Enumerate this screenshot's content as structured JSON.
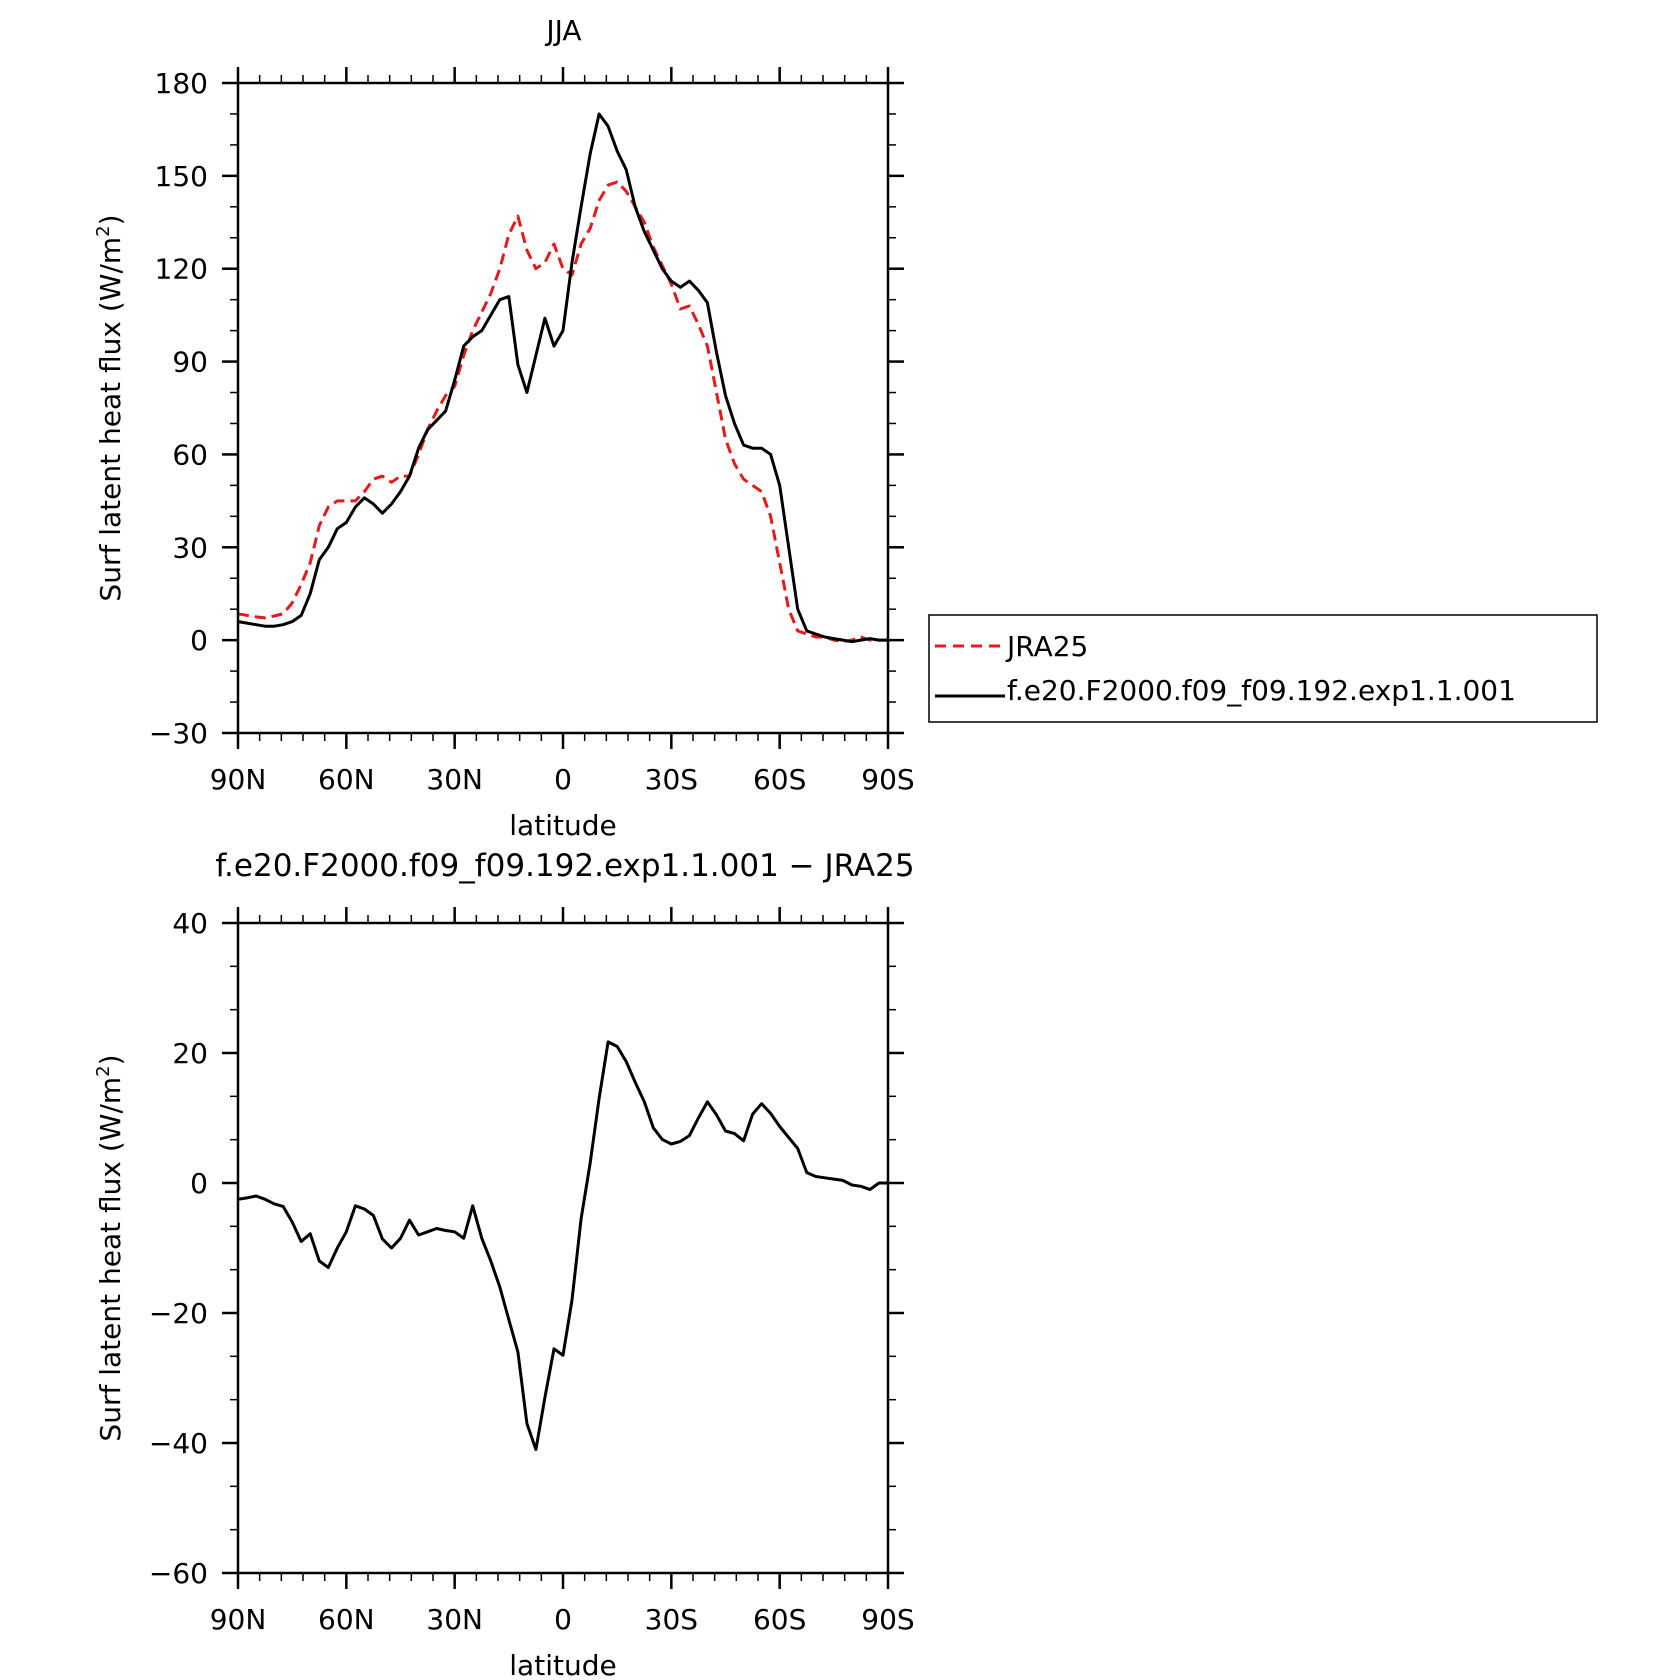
{
  "chart_data": [
    {
      "type": "line",
      "title": "JJA",
      "xlabel": "latitude",
      "ylabel_main": "Surf latent heat flux (W/m",
      "ylabel_sup": "2",
      "ylabel_close": ")",
      "ylim": [
        -30,
        180
      ],
      "yticks": [
        -30,
        0,
        30,
        60,
        90,
        120,
        150,
        180
      ],
      "ytick_labels": [
        "−30",
        "0",
        "30",
        "60",
        "90",
        "120",
        "150",
        "180"
      ],
      "xlim": [
        90,
        -90
      ],
      "xticks": [
        90,
        60,
        30,
        0,
        -30,
        -60,
        -90
      ],
      "xtick_labels": [
        "90N",
        "60N",
        "30N",
        "0",
        "30S",
        "60S",
        "90S"
      ],
      "legend_position": "right",
      "series": [
        {
          "name": "JRA25",
          "color": "#e41a1c",
          "dash": "dashed",
          "x": [
            90,
            87.5,
            85,
            82.5,
            80,
            77.5,
            75,
            72.5,
            70,
            67.5,
            65,
            62.5,
            60,
            57.5,
            55,
            52.5,
            50,
            47.5,
            45,
            42.5,
            40,
            37.5,
            35,
            32.5,
            30,
            27.5,
            25,
            22.5,
            20,
            17.5,
            15,
            12.5,
            10,
            7.5,
            5,
            2.5,
            0,
            -2.5,
            -5,
            -7.5,
            -10,
            -12.5,
            -15,
            -17.5,
            -20,
            -22.5,
            -25,
            -27.5,
            -30,
            -32.5,
            -35,
            -37.5,
            -40,
            -42.5,
            -45,
            -47.5,
            -50,
            -52.5,
            -55,
            -57.5,
            -60,
            -62.5,
            -65,
            -67.5,
            -70,
            -72.5,
            -75,
            -77.5,
            -80,
            -82.5,
            -85,
            -87.5,
            -90
          ],
          "y": [
            8.5,
            8,
            7.5,
            7.2,
            7.8,
            8.5,
            12,
            18,
            25,
            37,
            43,
            45,
            45,
            45,
            48,
            52,
            53,
            51,
            53,
            53,
            60,
            68,
            74,
            79,
            82,
            92,
            100,
            106,
            112,
            120,
            131,
            137,
            126,
            120,
            122,
            128,
            120,
            118,
            128,
            133,
            142,
            147,
            148,
            145,
            140,
            135,
            127,
            121,
            115,
            107,
            108,
            102,
            95,
            80,
            65,
            57,
            52,
            50,
            48,
            40,
            25,
            10,
            3,
            2,
            1,
            1,
            0,
            -0.5,
            0,
            1,
            0,
            0,
            0
          ]
        },
        {
          "name": "f.e20.F2000.f09_f09.192.exp1.1.001",
          "color": "#000000",
          "dash": "solid",
          "x": [
            90,
            87.5,
            85,
            82.5,
            80,
            77.5,
            75,
            72.5,
            70,
            67.5,
            65,
            62.5,
            60,
            57.5,
            55,
            52.5,
            50,
            47.5,
            45,
            42.5,
            40,
            37.5,
            35,
            32.5,
            30,
            27.5,
            25,
            22.5,
            20,
            17.5,
            15,
            12.5,
            10,
            7.5,
            5,
            2.5,
            0,
            -2.5,
            -5,
            -7.5,
            -10,
            -12.5,
            -15,
            -17.5,
            -20,
            -22.5,
            -25,
            -27.5,
            -30,
            -32.5,
            -35,
            -37.5,
            -40,
            -42.5,
            -45,
            -47.5,
            -50,
            -52.5,
            -55,
            -57.5,
            -60,
            -62.5,
            -65,
            -67.5,
            -70,
            -72.5,
            -75,
            -77.5,
            -80,
            -82.5,
            -85,
            -87.5,
            -90
          ],
          "y": [
            6,
            5.5,
            5,
            4.5,
            4.5,
            5,
            6,
            8,
            15,
            26,
            30,
            36,
            38,
            43,
            46,
            44,
            41,
            44,
            48,
            53,
            62,
            68,
            71,
            74,
            84,
            95,
            98,
            100,
            105,
            110,
            111,
            89,
            80,
            92,
            104,
            95,
            100,
            122,
            140,
            157,
            170,
            166,
            158,
            152,
            140,
            132,
            126,
            120,
            116,
            114,
            116,
            113,
            109,
            93,
            79,
            70,
            63,
            62,
            62,
            60,
            50,
            30,
            10,
            3,
            2,
            1,
            0.5,
            0,
            -0.5,
            0,
            0.5,
            0,
            0
          ]
        }
      ]
    },
    {
      "type": "line",
      "title": "f.e20.F2000.f09_f09.192.exp1.1.001 − JRA25",
      "xlabel": "latitude",
      "ylabel_main": "Surf latent heat flux (W/m",
      "ylabel_sup": "2",
      "ylabel_close": ")",
      "ylim": [
        -60,
        40
      ],
      "yticks": [
        -60,
        -40,
        -20,
        0,
        20,
        40
      ],
      "ytick_labels": [
        "−60",
        "−40",
        "−20",
        "0",
        "20",
        "40"
      ],
      "xlim": [
        90,
        -90
      ],
      "xticks": [
        90,
        60,
        30,
        0,
        -30,
        -60,
        -90
      ],
      "xtick_labels": [
        "90N",
        "60N",
        "30N",
        "0",
        "30S",
        "60S",
        "90S"
      ],
      "series": [
        {
          "color": "#000000",
          "dash": "solid",
          "x": [
            90,
            87.5,
            85,
            82.5,
            80,
            77.5,
            75,
            72.5,
            70,
            67.5,
            65,
            62.5,
            60,
            57.5,
            55,
            52.5,
            50,
            47.5,
            45,
            42.5,
            40,
            37.5,
            35,
            32.5,
            30,
            27.5,
            25,
            22.5,
            20,
            17.5,
            15,
            12.5,
            10,
            7.5,
            5,
            2.5,
            0,
            -2.5,
            -5,
            -7.5,
            -10,
            -12.5,
            -15,
            -17.5,
            -20,
            -22.5,
            -25,
            -27.5,
            -30,
            -32.5,
            -35,
            -37.5,
            -40,
            -42.5,
            -45,
            -47.5,
            -50,
            -52.5,
            -55,
            -57.5,
            -60,
            -62.5,
            -65,
            -67.5,
            -70,
            -72.5,
            -75,
            -77.5,
            -80,
            -82.5,
            -85,
            -87.5,
            -90
          ],
          "y": [
            -2.5,
            -2.3,
            -2,
            -2.5,
            -3.2,
            -3.6,
            -6,
            -9,
            -7.8,
            -12,
            -13,
            -10,
            -7.5,
            -3.5,
            -4,
            -5,
            -8.6,
            -10,
            -8.5,
            -5.7,
            -8,
            -7.5,
            -7,
            -7.3,
            -7.5,
            -8.5,
            -3.5,
            -8.5,
            -12,
            -16,
            -21,
            -26,
            -37,
            -41,
            -33,
            -25.5,
            -26.5,
            -18,
            -5.5,
            3,
            13,
            21.7,
            21,
            18.7,
            15.5,
            12.5,
            8.5,
            6.7,
            6,
            6.4,
            7.3,
            10,
            12.5,
            10.5,
            8,
            7.6,
            6.5,
            10.6,
            12.2,
            10.7,
            8.7,
            7,
            5.3,
            1.6,
            1,
            0.8,
            0.6,
            0.4,
            -0.3,
            -0.5,
            -1,
            0,
            0
          ]
        }
      ]
    }
  ]
}
